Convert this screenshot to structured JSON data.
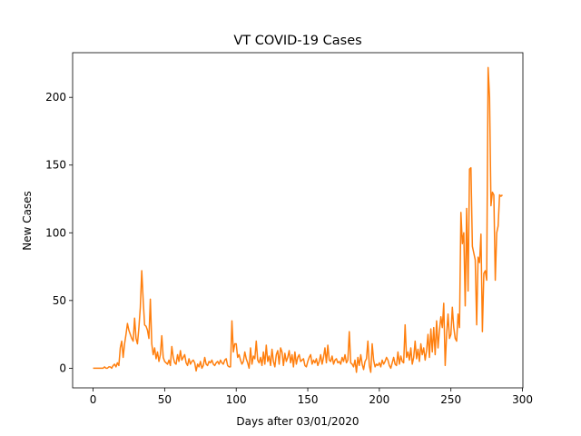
{
  "chart_data": {
    "type": "line",
    "title": "VT COVID-19 Cases",
    "x_label": "Days after 03/01/2020",
    "y_label": "New Cases",
    "color": "#ff7f0e",
    "x": [
      0,
      1,
      2,
      3,
      4,
      5,
      6,
      7,
      8,
      9,
      10,
      11,
      12,
      13,
      14,
      15,
      16,
      17,
      18,
      19,
      20,
      21,
      22,
      23,
      24,
      25,
      26,
      27,
      28,
      29,
      30,
      31,
      32,
      33,
      34,
      35,
      36,
      37,
      38,
      39,
      40,
      41,
      42,
      43,
      44,
      45,
      46,
      47,
      48,
      49,
      50,
      51,
      52,
      53,
      54,
      55,
      56,
      57,
      58,
      59,
      60,
      61,
      62,
      63,
      64,
      65,
      66,
      67,
      68,
      69,
      70,
      71,
      72,
      73,
      74,
      75,
      76,
      77,
      78,
      79,
      80,
      81,
      82,
      83,
      84,
      85,
      86,
      87,
      88,
      89,
      90,
      91,
      92,
      93,
      94,
      95,
      96,
      97,
      98,
      99,
      100,
      101,
      102,
      103,
      104,
      105,
      106,
      107,
      108,
      109,
      110,
      111,
      112,
      113,
      114,
      115,
      116,
      117,
      118,
      119,
      120,
      121,
      122,
      123,
      124,
      125,
      126,
      127,
      128,
      129,
      130,
      131,
      132,
      133,
      134,
      135,
      136,
      137,
      138,
      139,
      140,
      141,
      142,
      143,
      144,
      145,
      146,
      147,
      148,
      149,
      150,
      151,
      152,
      153,
      154,
      155,
      156,
      157,
      158,
      159,
      160,
      161,
      162,
      163,
      164,
      165,
      166,
      167,
      168,
      169,
      170,
      171,
      172,
      173,
      174,
      175,
      176,
      177,
      178,
      179,
      180,
      181,
      182,
      183,
      184,
      185,
      186,
      187,
      188,
      189,
      190,
      191,
      192,
      193,
      194,
      195,
      196,
      197,
      198,
      199,
      200,
      201,
      202,
      203,
      204,
      205,
      206,
      207,
      208,
      209,
      210,
      211,
      212,
      213,
      214,
      215,
      216,
      217,
      218,
      219,
      220,
      221,
      222,
      223,
      224,
      225,
      226,
      227,
      228,
      229,
      230,
      231,
      232,
      233,
      234,
      235,
      236,
      237,
      238,
      239,
      240,
      241,
      242,
      243,
      244,
      245,
      246,
      247,
      248,
      249,
      250,
      251,
      252,
      253,
      254,
      255,
      256,
      257,
      258,
      259,
      260,
      261,
      262,
      263,
      264,
      265,
      266,
      267,
      268,
      269,
      270,
      271,
      272,
      273,
      274,
      275,
      276,
      277,
      278,
      279,
      280,
      281,
      282,
      283,
      284,
      285,
      286
    ],
    "values": [
      0,
      0,
      0,
      0,
      0,
      0,
      0,
      0,
      1,
      0,
      0,
      1,
      1,
      0,
      2,
      3,
      1,
      4,
      2,
      15,
      20,
      8,
      18,
      25,
      33,
      28,
      25,
      22,
      20,
      37,
      22,
      18,
      30,
      45,
      72,
      50,
      32,
      31,
      28,
      22,
      51,
      18,
      10,
      15,
      7,
      12,
      5,
      10,
      24,
      8,
      5,
      4,
      3,
      6,
      2,
      16,
      8,
      4,
      3,
      10,
      5,
      13,
      6,
      8,
      10,
      4,
      2,
      7,
      3,
      5,
      6,
      4,
      -2,
      3,
      1,
      5,
      0,
      2,
      8,
      3,
      2,
      5,
      4,
      6,
      3,
      2,
      4,
      5,
      3,
      6,
      4,
      3,
      6,
      7,
      2,
      1,
      1,
      35,
      12,
      18,
      18,
      8,
      10,
      6,
      3,
      5,
      12,
      7,
      4,
      0,
      15,
      3,
      9,
      7,
      20,
      6,
      4,
      8,
      2,
      12,
      3,
      17,
      5,
      9,
      2,
      14,
      5,
      1,
      10,
      13,
      3,
      15,
      12,
      2,
      11,
      5,
      8,
      13,
      4,
      10,
      1,
      12,
      3,
      8,
      10,
      5,
      6,
      7,
      2,
      1,
      5,
      8,
      10,
      3,
      6,
      4,
      7,
      2,
      5,
      10,
      3,
      8,
      15,
      4,
      17,
      6,
      5,
      9,
      3,
      6,
      7,
      4,
      5,
      3,
      8,
      5,
      10,
      4,
      6,
      27,
      4,
      3,
      1,
      6,
      -3,
      8,
      2,
      10,
      3,
      -1,
      5,
      7,
      20,
      2,
      -3,
      18,
      6,
      1,
      3,
      2,
      4,
      1,
      6,
      3,
      5,
      8,
      6,
      2,
      0,
      4,
      8,
      3,
      2,
      12,
      3,
      9,
      5,
      4,
      32,
      8,
      12,
      6,
      15,
      3,
      8,
      20,
      7,
      14,
      5,
      18,
      10,
      15,
      6,
      13,
      25,
      8,
      29,
      12,
      30,
      10,
      35,
      15,
      28,
      38,
      30,
      48,
      2,
      25,
      40,
      22,
      25,
      45,
      30,
      22,
      20,
      40,
      30,
      115,
      92,
      100,
      46,
      118,
      57,
      147,
      148,
      90,
      85,
      80,
      32,
      82,
      78,
      99,
      27,
      70,
      72,
      65,
      222,
      200,
      120,
      130,
      128,
      65,
      100,
      105,
      128,
      127,
      128
    ],
    "xlim": [
      -14.3,
      300.3
    ],
    "ylim": [
      -14.5,
      233
    ],
    "xticks": [
      0,
      50,
      100,
      150,
      200,
      250,
      300
    ],
    "yticks": [
      0,
      50,
      100,
      150,
      200
    ]
  }
}
